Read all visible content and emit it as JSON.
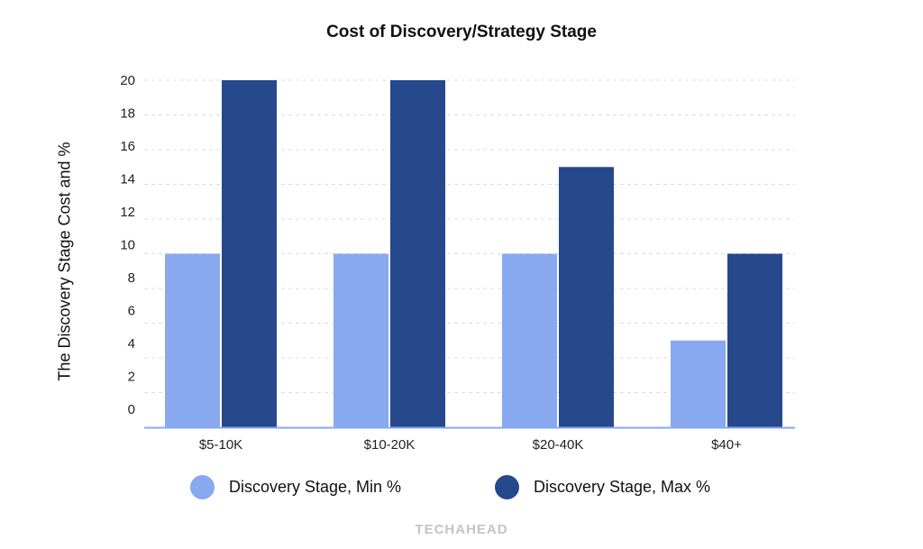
{
  "chart_data": {
    "type": "bar",
    "title": "Cost of Discovery/Strategy Stage",
    "xlabel": "",
    "ylabel": "The Discovery Stage Cost and %",
    "categories": [
      "$5-10K",
      "$10-20K",
      "$20-40K",
      "$40+"
    ],
    "series": [
      {
        "name": "Discovery Stage, Min %",
        "values": [
          10,
          10,
          10,
          5
        ],
        "color": "#88a8ef"
      },
      {
        "name": "Discovery Stage, Max %",
        "values": [
          20,
          20,
          15,
          10
        ],
        "color": "#26488c"
      }
    ],
    "ylim": [
      0,
      20
    ],
    "yticks": [
      "0",
      "2",
      "4",
      "6",
      "8",
      "10",
      "12",
      "14",
      "16",
      "18",
      "20"
    ],
    "grid": true,
    "legend": "bottom"
  },
  "watermark": "TECHAHEAD"
}
